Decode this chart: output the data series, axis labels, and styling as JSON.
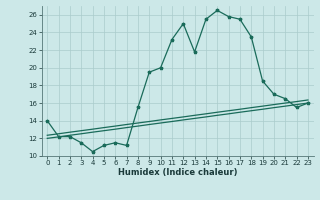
{
  "title": "",
  "xlabel": "Humidex (Indice chaleur)",
  "ylabel": "",
  "background_color": "#cce8e8",
  "grid_color": "#aacccc",
  "line_color": "#1a6b5a",
  "x_data": [
    0,
    1,
    2,
    3,
    4,
    5,
    6,
    7,
    8,
    9,
    10,
    11,
    12,
    13,
    14,
    15,
    16,
    17,
    18,
    19,
    20,
    21,
    22,
    23
  ],
  "y_main": [
    14,
    12.2,
    12.2,
    11.5,
    10.5,
    11.2,
    11.5,
    11.2,
    15.5,
    19.5,
    20.0,
    23.2,
    25.0,
    21.8,
    25.5,
    26.5,
    25.8,
    25.5,
    23.5,
    18.5,
    17.0,
    16.5,
    15.5,
    16.0
  ],
  "y_lin_low": [
    12.0,
    12.17,
    12.35,
    12.52,
    12.7,
    12.87,
    13.04,
    13.22,
    13.39,
    13.57,
    13.74,
    13.91,
    14.09,
    14.26,
    14.43,
    14.61,
    14.78,
    14.96,
    15.13,
    15.3,
    15.48,
    15.65,
    15.83,
    16.0
  ],
  "y_lin_high": [
    12.35,
    12.52,
    12.7,
    12.87,
    13.04,
    13.22,
    13.39,
    13.57,
    13.74,
    13.91,
    14.09,
    14.26,
    14.43,
    14.61,
    14.78,
    14.96,
    15.13,
    15.3,
    15.48,
    15.65,
    15.83,
    16.0,
    16.17,
    16.35
  ],
  "ylim": [
    10,
    27
  ],
  "xlim": [
    -0.5,
    23.5
  ],
  "yticks": [
    10,
    12,
    14,
    16,
    18,
    20,
    22,
    24,
    26
  ],
  "xticks": [
    0,
    1,
    2,
    3,
    4,
    5,
    6,
    7,
    8,
    9,
    10,
    11,
    12,
    13,
    14,
    15,
    16,
    17,
    18,
    19,
    20,
    21,
    22,
    23
  ],
  "xlabel_fontsize": 6.0,
  "tick_fontsize": 5.0
}
